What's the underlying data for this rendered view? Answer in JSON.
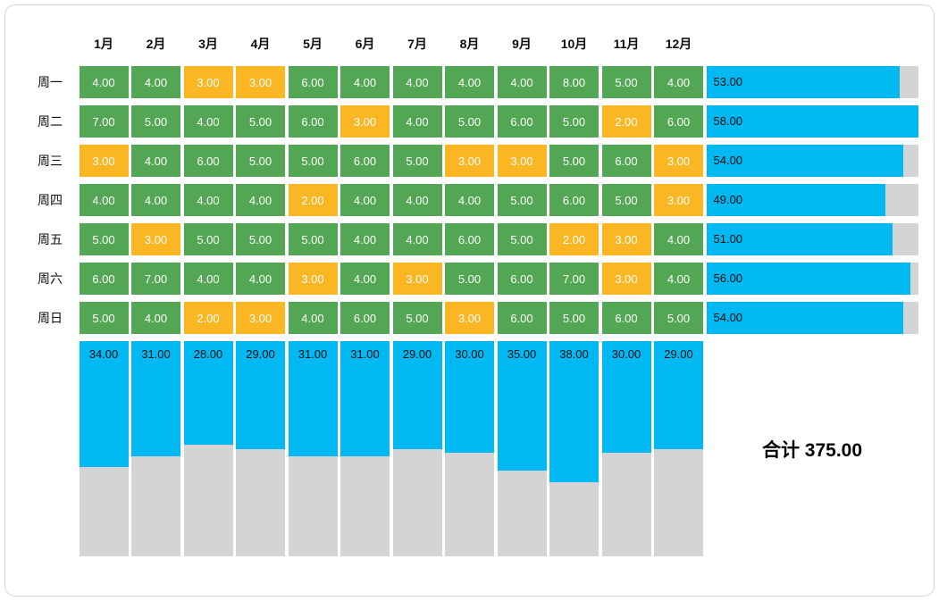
{
  "chart_data": {
    "type": "heatmap",
    "title": "",
    "columns": [
      "1月",
      "2月",
      "3月",
      "4月",
      "5月",
      "6月",
      "7月",
      "8月",
      "9月",
      "10月",
      "11月",
      "12月"
    ],
    "rows": [
      {
        "label": "周一",
        "values": [
          4,
          4,
          3,
          3,
          6,
          4,
          4,
          4,
          4,
          8,
          5,
          4
        ],
        "total": 53
      },
      {
        "label": "周二",
        "values": [
          7,
          5,
          4,
          5,
          6,
          3,
          4,
          5,
          6,
          5,
          2,
          6
        ],
        "total": 58
      },
      {
        "label": "周三",
        "values": [
          3,
          4,
          6,
          5,
          5,
          6,
          5,
          3,
          3,
          5,
          6,
          3
        ],
        "total": 54
      },
      {
        "label": "周四",
        "values": [
          4,
          4,
          4,
          4,
          2,
          4,
          4,
          4,
          5,
          6,
          5,
          3
        ],
        "total": 49
      },
      {
        "label": "周五",
        "values": [
          5,
          3,
          5,
          5,
          5,
          4,
          4,
          6,
          5,
          2,
          3,
          4
        ],
        "total": 51
      },
      {
        "label": "周六",
        "values": [
          6,
          7,
          4,
          4,
          3,
          4,
          3,
          5,
          6,
          7,
          3,
          4
        ],
        "total": 56
      },
      {
        "label": "周日",
        "values": [
          5,
          4,
          2,
          3,
          4,
          6,
          5,
          3,
          6,
          5,
          6,
          5
        ],
        "total": 54
      }
    ],
    "column_totals": [
      34,
      31,
      28,
      29,
      31,
      31,
      29,
      30,
      35,
      38,
      30,
      29
    ],
    "grand_total": 375,
    "grand_total_label": "合计 375.00",
    "value_decimals": 2,
    "amber_threshold": 3,
    "scale_max": 58,
    "legend": {
      "green_meaning": "value >= 4",
      "amber_meaning": "value <= 3",
      "cyan_meaning": "row/column total fill",
      "gray_meaning": "remainder of total scale"
    },
    "colors": {
      "green": "#53a653",
      "amber": "#fbb624",
      "cyan": "#00b9f2",
      "gray": "#d4d4d4"
    }
  }
}
